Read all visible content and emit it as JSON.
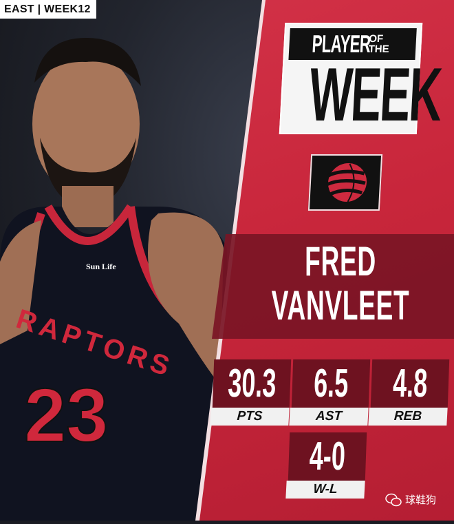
{
  "header_tag": "EAST | WEEK12",
  "title": {
    "line1": "PLAYER",
    "of": "OF",
    "the": "THE",
    "line2": "WEEK"
  },
  "team_logo": "toronto-raptors-basketball-claw-logo",
  "player": {
    "first_name": "FRED",
    "last_name": "VANVLEET"
  },
  "jersey": {
    "team_text": "RAPTORS",
    "number": "23",
    "sponsor": "Sun Life"
  },
  "stats": [
    {
      "value": "30.3",
      "label": "PTS"
    },
    {
      "value": "6.5",
      "label": "AST"
    },
    {
      "value": "4.8",
      "label": "REB"
    },
    {
      "value": "4-0",
      "label": "W-L"
    }
  ],
  "watermark": "球鞋狗",
  "colors": {
    "panel_red": "#c8263b",
    "dark_red": "#6e1220",
    "black": "#111111",
    "white": "#f5f5f5"
  }
}
